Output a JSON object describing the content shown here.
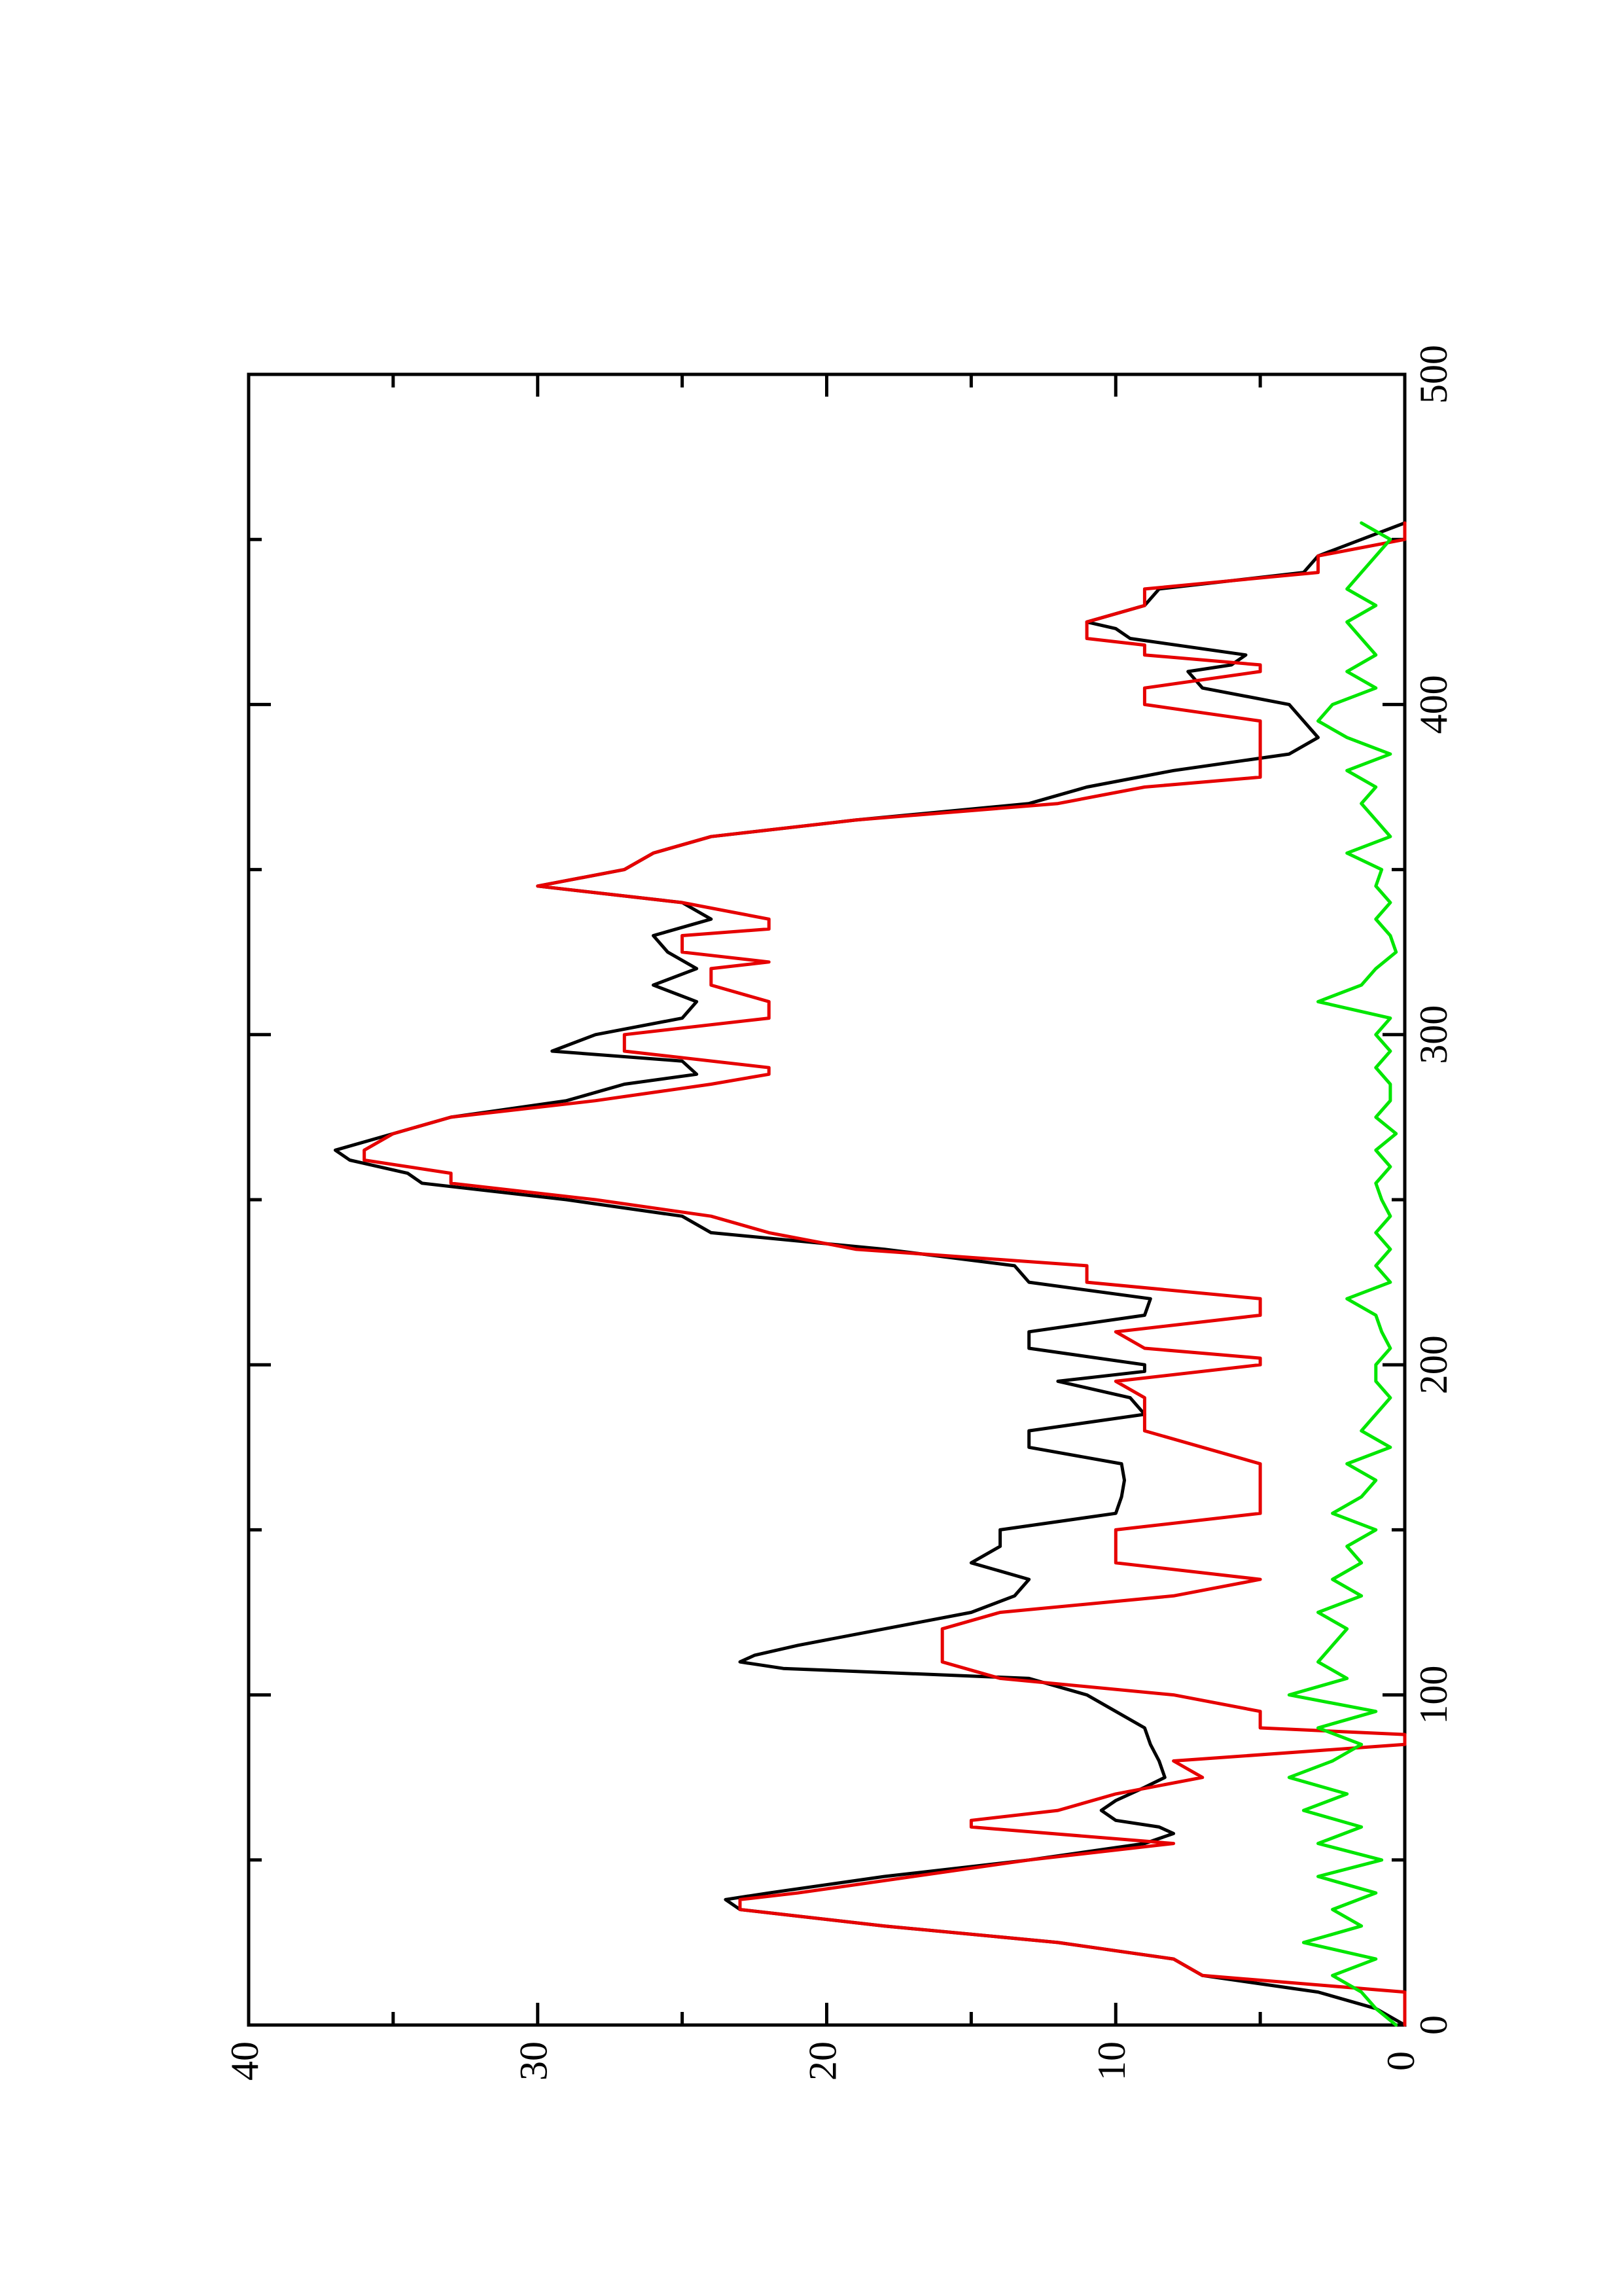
{
  "chart_data": {
    "type": "line",
    "orientation": "rotated-90-ccw",
    "title": "",
    "xlabel": "",
    "ylabel": "",
    "xlim": [
      0,
      500
    ],
    "ylim": [
      0,
      40
    ],
    "x_ticks": [
      "0",
      "100",
      "200",
      "300",
      "400",
      "500"
    ],
    "y_ticks": [
      "0",
      "10",
      "20",
      "30",
      "40"
    ],
    "grid": false,
    "series": [
      {
        "color": "#000000",
        "points": [
          [
            0,
            0
          ],
          [
            5,
            1
          ],
          [
            10,
            3
          ],
          [
            15,
            7
          ],
          [
            20,
            8
          ],
          [
            25,
            12
          ],
          [
            30,
            18
          ],
          [
            35,
            23
          ],
          [
            38,
            23.5
          ],
          [
            40,
            22
          ],
          [
            45,
            18
          ],
          [
            50,
            13
          ],
          [
            55,
            9
          ],
          [
            58,
            8
          ],
          [
            60,
            8.5
          ],
          [
            62,
            10
          ],
          [
            65,
            10.5
          ],
          [
            68,
            10
          ],
          [
            72,
            9
          ],
          [
            75,
            8.3
          ],
          [
            80,
            8.5
          ],
          [
            85,
            8.8
          ],
          [
            90,
            9
          ],
          [
            95,
            10
          ],
          [
            100,
            11
          ],
          [
            105,
            13
          ],
          [
            108,
            21.5
          ],
          [
            110,
            23
          ],
          [
            112,
            22.5
          ],
          [
            115,
            21
          ],
          [
            120,
            18
          ],
          [
            125,
            15
          ],
          [
            130,
            13.5
          ],
          [
            135,
            13
          ],
          [
            140,
            15
          ],
          [
            145,
            14
          ],
          [
            150,
            14
          ],
          [
            155,
            10
          ],
          [
            160,
            9.8
          ],
          [
            165,
            9.7
          ],
          [
            170,
            9.8
          ],
          [
            175,
            13
          ],
          [
            180,
            13
          ],
          [
            185,
            9
          ],
          [
            190,
            9.5
          ],
          [
            195,
            12
          ],
          [
            198,
            9
          ],
          [
            200,
            9
          ],
          [
            205,
            13
          ],
          [
            210,
            13
          ],
          [
            215,
            9
          ],
          [
            220,
            8.8
          ],
          [
            225,
            13
          ],
          [
            230,
            13.5
          ],
          [
            235,
            18
          ],
          [
            240,
            24
          ],
          [
            245,
            25
          ],
          [
            250,
            29
          ],
          [
            255,
            34
          ],
          [
            258,
            34.5
          ],
          [
            262,
            36.5
          ],
          [
            265,
            37
          ],
          [
            270,
            35
          ],
          [
            275,
            33
          ],
          [
            280,
            29
          ],
          [
            285,
            27
          ],
          [
            288,
            24.5
          ],
          [
            292,
            25
          ],
          [
            295,
            29.5
          ],
          [
            300,
            28
          ],
          [
            305,
            25
          ],
          [
            310,
            24.5
          ],
          [
            315,
            26
          ],
          [
            320,
            24.5
          ],
          [
            325,
            25.5
          ],
          [
            330,
            26
          ],
          [
            335,
            24
          ],
          [
            340,
            25
          ],
          [
            345,
            30
          ],
          [
            350,
            27
          ],
          [
            355,
            26
          ],
          [
            360,
            24
          ],
          [
            365,
            19
          ],
          [
            370,
            13
          ],
          [
            375,
            11
          ],
          [
            380,
            8
          ],
          [
            385,
            4
          ],
          [
            390,
            3
          ],
          [
            395,
            3.5
          ],
          [
            400,
            4
          ],
          [
            405,
            7
          ],
          [
            410,
            7.5
          ],
          [
            412,
            6
          ],
          [
            415,
            5.5
          ],
          [
            420,
            9.5
          ],
          [
            423,
            10
          ],
          [
            425,
            11
          ],
          [
            430,
            9
          ],
          [
            435,
            8.5
          ],
          [
            440,
            3.5
          ],
          [
            445,
            3
          ],
          [
            450,
            1.5
          ],
          [
            455,
            0
          ]
        ]
      },
      {
        "color": "#e60000",
        "points": [
          [
            0,
            0
          ],
          [
            10,
            0
          ],
          [
            15,
            7
          ],
          [
            20,
            8
          ],
          [
            25,
            12
          ],
          [
            30,
            18
          ],
          [
            35,
            23
          ],
          [
            38,
            23
          ],
          [
            40,
            21
          ],
          [
            45,
            17
          ],
          [
            50,
            13
          ],
          [
            55,
            8
          ],
          [
            60,
            15
          ],
          [
            62,
            15
          ],
          [
            65,
            12
          ],
          [
            70,
            10
          ],
          [
            75,
            7
          ],
          [
            80,
            8
          ],
          [
            85,
            0
          ],
          [
            88,
            0
          ],
          [
            90,
            5
          ],
          [
            95,
            5
          ],
          [
            100,
            8
          ],
          [
            105,
            14
          ],
          [
            110,
            16
          ],
          [
            120,
            16
          ],
          [
            125,
            14
          ],
          [
            130,
            8
          ],
          [
            135,
            5
          ],
          [
            140,
            10
          ],
          [
            150,
            10
          ],
          [
            155,
            5
          ],
          [
            165,
            5
          ],
          [
            170,
            5
          ],
          [
            180,
            9
          ],
          [
            190,
            9
          ],
          [
            195,
            10
          ],
          [
            200,
            5
          ],
          [
            202,
            5
          ],
          [
            205,
            9
          ],
          [
            210,
            10
          ],
          [
            215,
            5
          ],
          [
            220,
            5
          ],
          [
            225,
            11
          ],
          [
            230,
            11
          ],
          [
            235,
            19
          ],
          [
            240,
            22
          ],
          [
            245,
            24
          ],
          [
            250,
            28
          ],
          [
            255,
            33
          ],
          [
            258,
            33
          ],
          [
            262,
            36
          ],
          [
            265,
            36
          ],
          [
            270,
            35
          ],
          [
            275,
            33
          ],
          [
            280,
            28
          ],
          [
            285,
            24
          ],
          [
            288,
            22
          ],
          [
            290,
            22
          ],
          [
            295,
            27
          ],
          [
            300,
            27
          ],
          [
            305,
            22
          ],
          [
            310,
            22
          ],
          [
            315,
            24
          ],
          [
            320,
            24
          ],
          [
            322,
            22
          ],
          [
            325,
            25
          ],
          [
            330,
            25
          ],
          [
            332,
            22
          ],
          [
            335,
            22
          ],
          [
            340,
            25
          ],
          [
            345,
            30
          ],
          [
            350,
            27
          ],
          [
            355,
            26
          ],
          [
            360,
            24
          ],
          [
            365,
            19
          ],
          [
            370,
            12
          ],
          [
            375,
            9
          ],
          [
            378,
            5
          ],
          [
            395,
            5
          ],
          [
            400,
            9
          ],
          [
            405,
            9
          ],
          [
            410,
            5
          ],
          [
            412,
            5
          ],
          [
            415,
            9
          ],
          [
            418,
            9
          ],
          [
            420,
            11
          ],
          [
            425,
            11
          ],
          [
            430,
            9
          ],
          [
            435,
            9
          ],
          [
            440,
            3
          ],
          [
            445,
            3
          ],
          [
            450,
            0
          ],
          [
            455,
            0
          ]
        ]
      },
      {
        "color": "#00e600",
        "points": [
          [
            0,
            0.3
          ],
          [
            5,
            1
          ],
          [
            10,
            1.5
          ],
          [
            15,
            2.5
          ],
          [
            20,
            1
          ],
          [
            25,
            3.5
          ],
          [
            30,
            1.5
          ],
          [
            35,
            2.5
          ],
          [
            40,
            1
          ],
          [
            45,
            3
          ],
          [
            50,
            0.8
          ],
          [
            55,
            3
          ],
          [
            60,
            1.5
          ],
          [
            65,
            3.5
          ],
          [
            70,
            2
          ],
          [
            75,
            4
          ],
          [
            80,
            2.5
          ],
          [
            85,
            1.5
          ],
          [
            90,
            3
          ],
          [
            95,
            1
          ],
          [
            100,
            4
          ],
          [
            105,
            2
          ],
          [
            110,
            3
          ],
          [
            115,
            2.5
          ],
          [
            120,
            2
          ],
          [
            125,
            3
          ],
          [
            130,
            1.5
          ],
          [
            135,
            2.5
          ],
          [
            140,
            1.5
          ],
          [
            145,
            2
          ],
          [
            150,
            1
          ],
          [
            155,
            2.5
          ],
          [
            160,
            1.5
          ],
          [
            165,
            1
          ],
          [
            170,
            2
          ],
          [
            175,
            0.5
          ],
          [
            180,
            1.5
          ],
          [
            185,
            1
          ],
          [
            190,
            0.5
          ],
          [
            195,
            1
          ],
          [
            200,
            1
          ],
          [
            205,
            0.5
          ],
          [
            210,
            0.8
          ],
          [
            215,
            1
          ],
          [
            220,
            2
          ],
          [
            225,
            0.5
          ],
          [
            230,
            1
          ],
          [
            235,
            0.5
          ],
          [
            240,
            1
          ],
          [
            245,
            0.5
          ],
          [
            250,
            0.8
          ],
          [
            255,
            1
          ],
          [
            260,
            0.5
          ],
          [
            265,
            1
          ],
          [
            270,
            0.3
          ],
          [
            275,
            1
          ],
          [
            280,
            0.5
          ],
          [
            285,
            0.5
          ],
          [
            290,
            1
          ],
          [
            295,
            0.5
          ],
          [
            300,
            1
          ],
          [
            305,
            0.5
          ],
          [
            310,
            3
          ],
          [
            315,
            1.5
          ],
          [
            320,
            1
          ],
          [
            325,
            0.3
          ],
          [
            330,
            0.5
          ],
          [
            335,
            1
          ],
          [
            340,
            0.5
          ],
          [
            345,
            1
          ],
          [
            350,
            0.8
          ],
          [
            355,
            2
          ],
          [
            360,
            0.5
          ],
          [
            365,
            1
          ],
          [
            370,
            1.5
          ],
          [
            375,
            1
          ],
          [
            380,
            2
          ],
          [
            385,
            0.5
          ],
          [
            390,
            2
          ],
          [
            395,
            3
          ],
          [
            400,
            2.5
          ],
          [
            405,
            1
          ],
          [
            410,
            2
          ],
          [
            415,
            1
          ],
          [
            420,
            1.5
          ],
          [
            425,
            2
          ],
          [
            430,
            1
          ],
          [
            435,
            2
          ],
          [
            440,
            1.5
          ],
          [
            445,
            1
          ],
          [
            450,
            0.5
          ],
          [
            455,
            1.5
          ]
        ]
      }
    ]
  }
}
